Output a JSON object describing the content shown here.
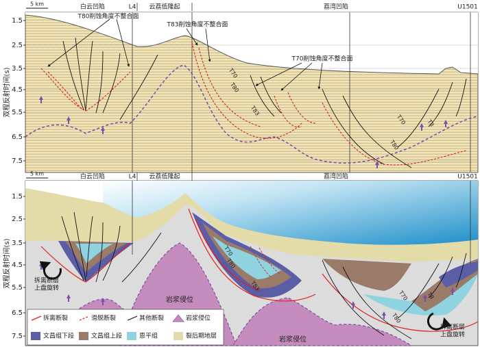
{
  "panels": [
    {
      "scale_bar": "5 km",
      "regions": [
        "白云凹陷",
        "L4",
        "云荔低隆起",
        "荔湾凹陷",
        "U1501"
      ],
      "y_axis": {
        "title": "双程反射时间(s)",
        "ticks": [
          "1.5",
          "2.5",
          "3.5",
          "4.5",
          "5.5",
          "6.5",
          "7.5"
        ]
      },
      "annotations": [
        "T80削蚀角度不整合面",
        "T83削蚀角度不整合面",
        "T70削蚀角度不整合面"
      ],
      "horizon_labels": [
        "T70",
        "T80",
        "T83",
        "T70",
        "T80",
        "T8"
      ]
    },
    {
      "scale_bar": "5 km",
      "regions": [
        "白云凹陷",
        "L4",
        "云荔低隆起",
        "荔湾凹陷",
        "U1501"
      ],
      "y_axis": {
        "title": "双程反射时间(s)",
        "ticks": [
          "1.5",
          "2.5",
          "3.5",
          "4.5",
          "5.5",
          "6.5",
          "7.5"
        ]
      },
      "horizon_labels": [
        "T70",
        "T80",
        "T83",
        "T70",
        "T80",
        "T8"
      ],
      "rotation_labels": [
        [
          "拆离断层",
          "上盘旋转"
        ],
        [
          "拆离断层",
          "上盘旋转"
        ]
      ],
      "magma_labels": [
        "岩浆侵位",
        "岩浆侵位"
      ]
    }
  ],
  "legend": [
    "拆离断裂",
    "滑脱断裂",
    "其他断裂",
    "岩浆侵位",
    "文昌组下段",
    "文昌组上段",
    "恩平组",
    "裂后期地层"
  ]
}
